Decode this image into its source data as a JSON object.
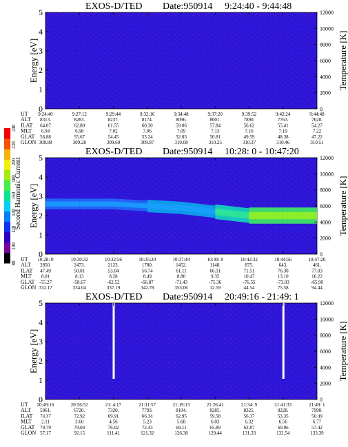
{
  "colorbar": {
    "label": "Second Harmonic Current",
    "ticks": [
      "80",
      "100",
      "120",
      "140",
      "160",
      "180",
      "200",
      "220",
      "240"
    ],
    "colors": [
      "#000000",
      "#7a00a0",
      "#2a00c8",
      "#1030ff",
      "#0080ff",
      "#00d0ff",
      "#00e890",
      "#40f040",
      "#a0f000",
      "#f0f000",
      "#ffb000",
      "#ff5000",
      "#ff0000"
    ]
  },
  "chart_data": [
    {
      "type": "heatmap",
      "title": "EXOS-D/TED",
      "date_label": "Date:950914",
      "time_range": "9:24:40 - 9:44:48",
      "ylabel": "Energy [eV]",
      "y2label": "Temperature [K]",
      "ylim": [
        0,
        5
      ],
      "yticks": [
        "0",
        "1",
        "2",
        "3",
        "4",
        "5"
      ],
      "y2lim": [
        0,
        12000
      ],
      "y2ticks": [
        "0",
        "2000",
        "4000",
        "6000",
        "8000",
        "10000",
        "12000"
      ],
      "row_labels": [
        "UT",
        "ALT",
        "ILAT",
        "MLT",
        "GLAT",
        "GLON"
      ],
      "columns": [
        [
          "9:24:40",
          "8313.",
          "64.07",
          "6.94",
          "56.88",
          "308.88"
        ],
        [
          "9:27:12",
          "8283.",
          "62.80",
          "6.98",
          "55.67",
          "309.28"
        ],
        [
          "9:29:44",
          "8237.",
          "61.55",
          "7.02",
          "54.45",
          "309.60"
        ],
        [
          "9:32:16",
          "8174.",
          "60.30",
          "7.06",
          "53.24",
          "309.87"
        ],
        [
          "9:34:48",
          "8096.",
          "59.06",
          "7.09",
          "52.03",
          "310.08"
        ],
        [
          "9:37:20",
          "8001.",
          "57.84",
          "7.13",
          "50.81",
          "310.25"
        ],
        [
          "9:39:52",
          "7890.",
          "56.62",
          "7.16",
          "49.59",
          "310.37"
        ],
        [
          "9:42:24",
          "7763.",
          "55.41",
          "7.19",
          "48.38",
          "310.46"
        ],
        [
          "9:44:48",
          "7628.",
          "54.27",
          "7.22",
          "47.22",
          "310.51"
        ]
      ],
      "background": "dominant low intensity",
      "features": []
    },
    {
      "type": "heatmap",
      "title": "EXOS-D/TED",
      "date_label": "Date:950914",
      "time_range": "10:28: 0 - 10:47:20",
      "ylabel": "Energy [eV]",
      "y2label": "Temperature [K]",
      "ylim": [
        0,
        5
      ],
      "yticks": [
        "0",
        "1",
        "2",
        "3",
        "4",
        "5"
      ],
      "y2lim": [
        0,
        12000
      ],
      "y2ticks": [
        "0",
        "2000",
        "4000",
        "6000",
        "8000",
        "10000",
        "12000"
      ],
      "row_labels": [
        "UT",
        "ALT",
        "ILAT",
        "MLT",
        "GLAT",
        "GLON"
      ],
      "columns": [
        [
          "10:28: 0",
          "2850.",
          "47.49",
          "8.01",
          "-55.27",
          "332.17"
        ],
        [
          "10:30:32",
          "2473.",
          "50.01",
          "8.13",
          "-58.67",
          "334.04"
        ],
        [
          "10:32:56",
          "2123.",
          "53.04",
          "8.28",
          "-62.52",
          "337.19"
        ],
        [
          "10:35:20",
          "1780.",
          "56.74",
          "8.49",
          "-66.87",
          "342.78"
        ],
        [
          "10:37:44",
          "1452.",
          "61.11",
          "8.80",
          "-71.43",
          "353.06"
        ],
        [
          "10:40: 8",
          "1148.",
          "66.11",
          "9.35",
          "-75.36",
          "12.59"
        ],
        [
          "10:42:32",
          "875.",
          "71.51",
          "10.47",
          "-76.55",
          "44.54"
        ],
        [
          "10:44:56",
          "643.",
          "76.30",
          "13.10",
          "-73.03",
          "75.58"
        ],
        [
          "10:47:20",
          "461.",
          "77.03",
          "16.22",
          "-65.90",
          "94.44"
        ]
      ],
      "band_center_ev": [
        2.6,
        2.6,
        2.6,
        2.5,
        2.4,
        2.2,
        2.0,
        2.0,
        2.0
      ],
      "band_intensity": [
        "moderate",
        "moderate",
        "moderate",
        "elevated",
        "elevated",
        "high",
        "peak",
        "peak",
        "high"
      ]
    },
    {
      "type": "heatmap",
      "title": "EXOS-D/TED",
      "date_label": "Date:950914",
      "time_range": "20:49:16 - 21:49: 1",
      "ylabel": "Energy [eV]",
      "y2label": "Temperature [K]",
      "ylim": [
        0,
        5
      ],
      "yticks": [
        "0",
        "1",
        "2",
        "3",
        "4",
        "5"
      ],
      "y2lim": [
        0,
        12000
      ],
      "y2ticks": [
        "0",
        "2000",
        "4000",
        "6000",
        "8000",
        "10000",
        "12000"
      ],
      "row_labels": [
        "UT",
        "ALT",
        "ILAT",
        "MLT",
        "GLAT",
        "GLON"
      ],
      "columns": [
        [
          "20:49:16",
          "5961.",
          "74.37",
          "2.11",
          "79.79",
          "57.17"
        ],
        [
          "20:56:52",
          "6720.",
          "72.92",
          "3.60",
          "79.04",
          "92.15"
        ],
        [
          "21: 4:17",
          "7320.",
          "69.91",
          "4.56",
          "76.02",
          "111.41"
        ],
        [
          "21:11:57",
          "7793.",
          "66.34",
          "5.23",
          "72.43",
          "121.32"
        ],
        [
          "21:19:13",
          "8104.",
          "62.95",
          "5.68",
          "69.11",
          "126.38"
        ],
        [
          "21:26:41",
          "8285.",
          "59.58",
          "6.03",
          "65.89",
          "129.44"
        ],
        [
          "21:34: 9",
          "8325.",
          "56.37",
          "6.32",
          "62.87",
          "131.33"
        ],
        [
          "21:41:33",
          "8228.",
          "53.35",
          "6.56",
          "60.06",
          "132.54"
        ],
        [
          "21:49: 1",
          "7990.",
          "50.49",
          "6.77",
          "57.42",
          "133.39"
        ]
      ],
      "data_gaps": [
        "21: 4:17",
        "21:41:33"
      ]
    }
  ]
}
